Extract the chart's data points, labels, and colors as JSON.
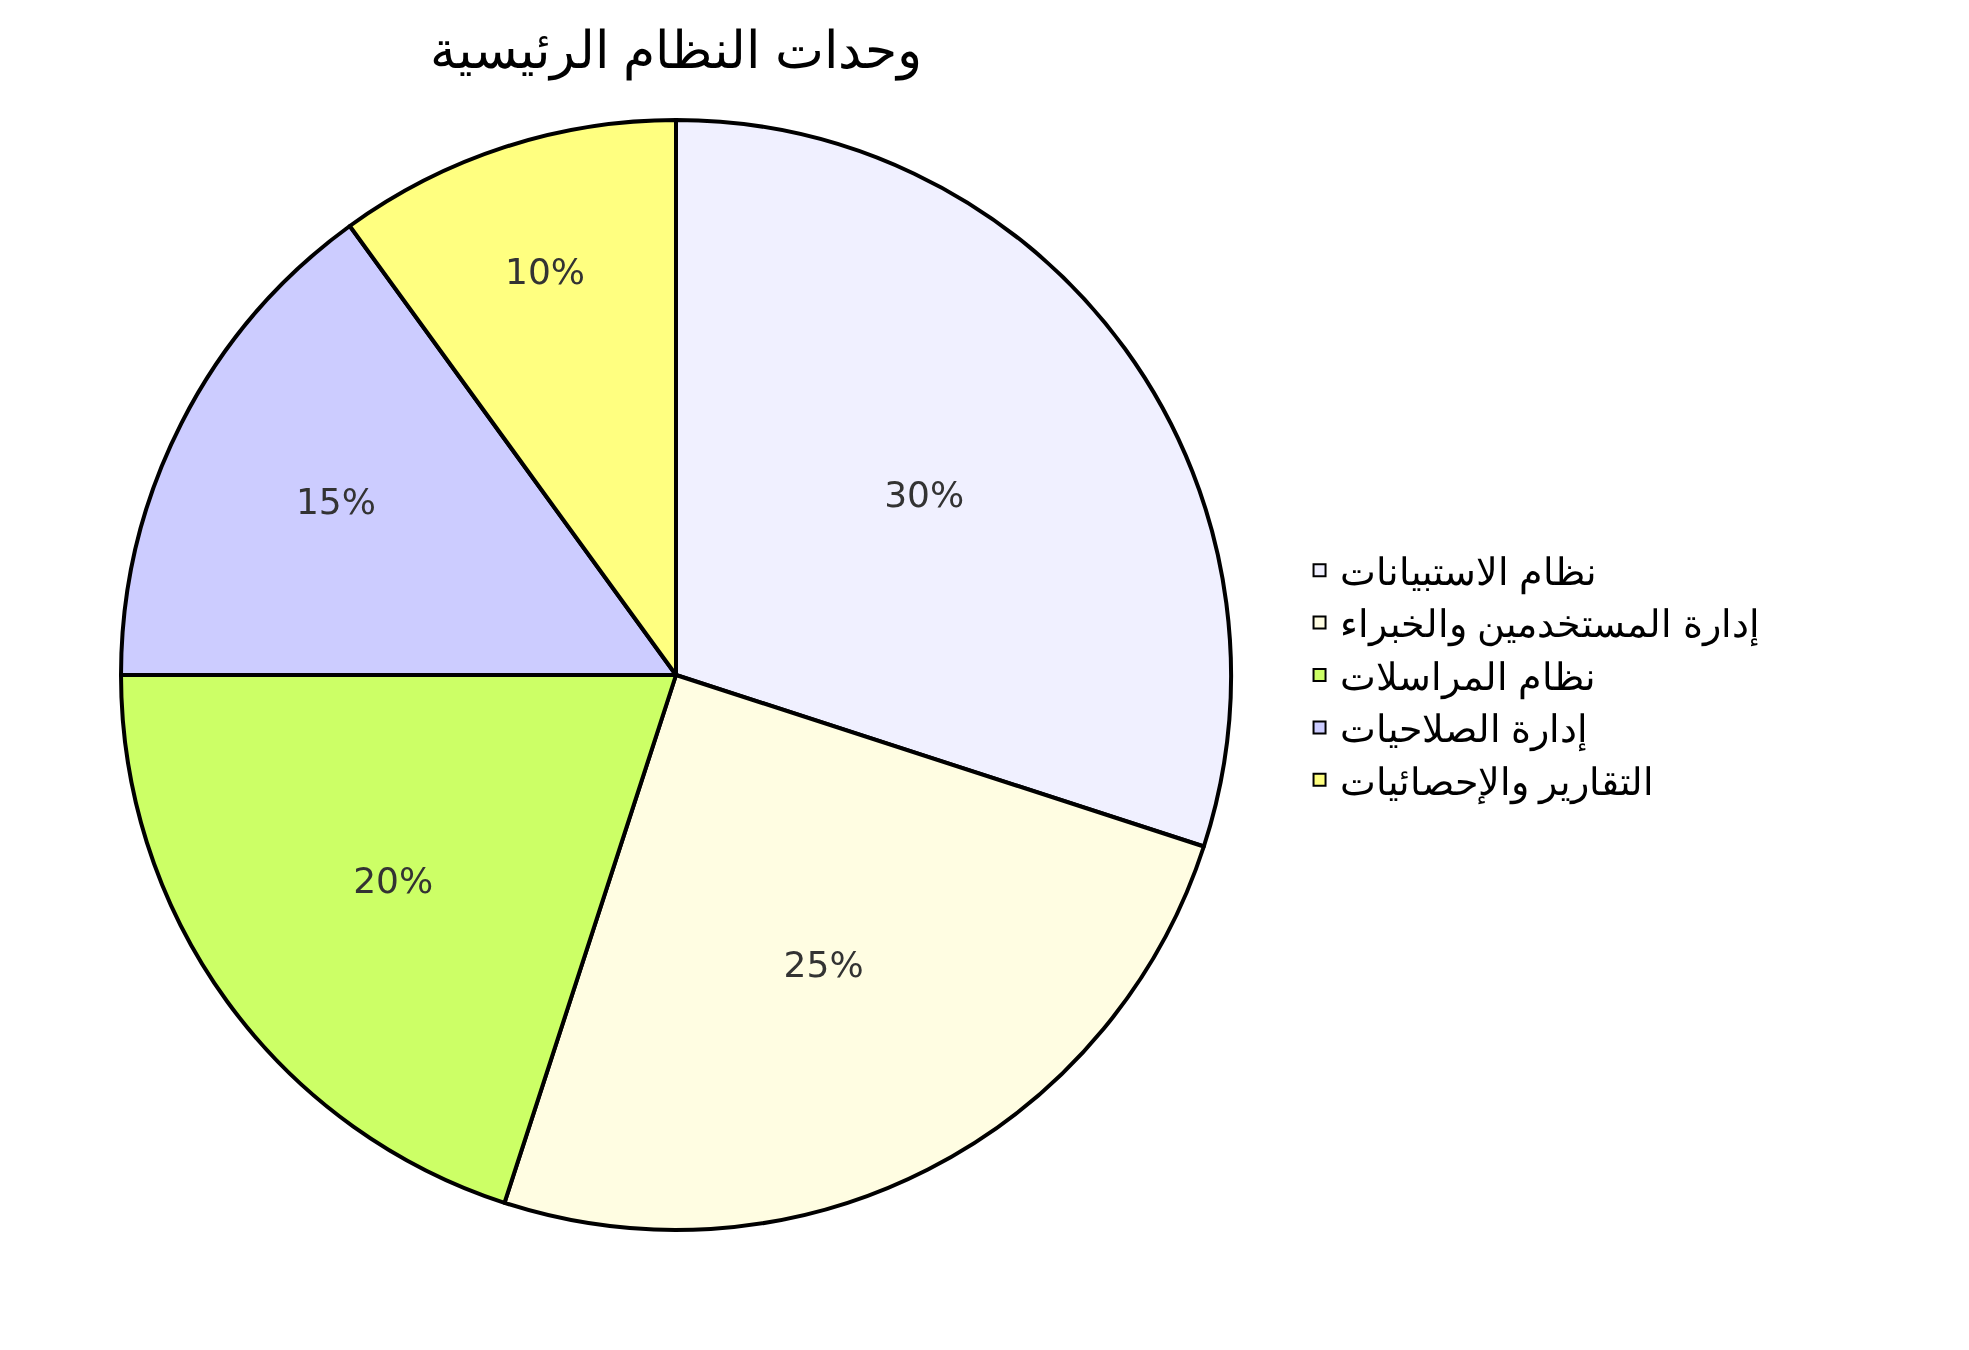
{
  "chart_data": {
    "type": "pie",
    "title": "وحدات النظام الرئيسية",
    "categories": [
      "نظام الاستبيانات",
      "إدارة المستخدمين والخبراء",
      "نظام المراسلات",
      "إدارة الصلاحيات",
      "التقارير والإحصائيات"
    ],
    "values": [
      30,
      25,
      20,
      15,
      10
    ],
    "colors": [
      "#f0f0ff",
      "#fffde2",
      "#ccff66",
      "#ccccff",
      "#ffff80"
    ],
    "value_labels": [
      "30%",
      "25%",
      "20%",
      "15%",
      "10%"
    ],
    "legend": "right"
  }
}
